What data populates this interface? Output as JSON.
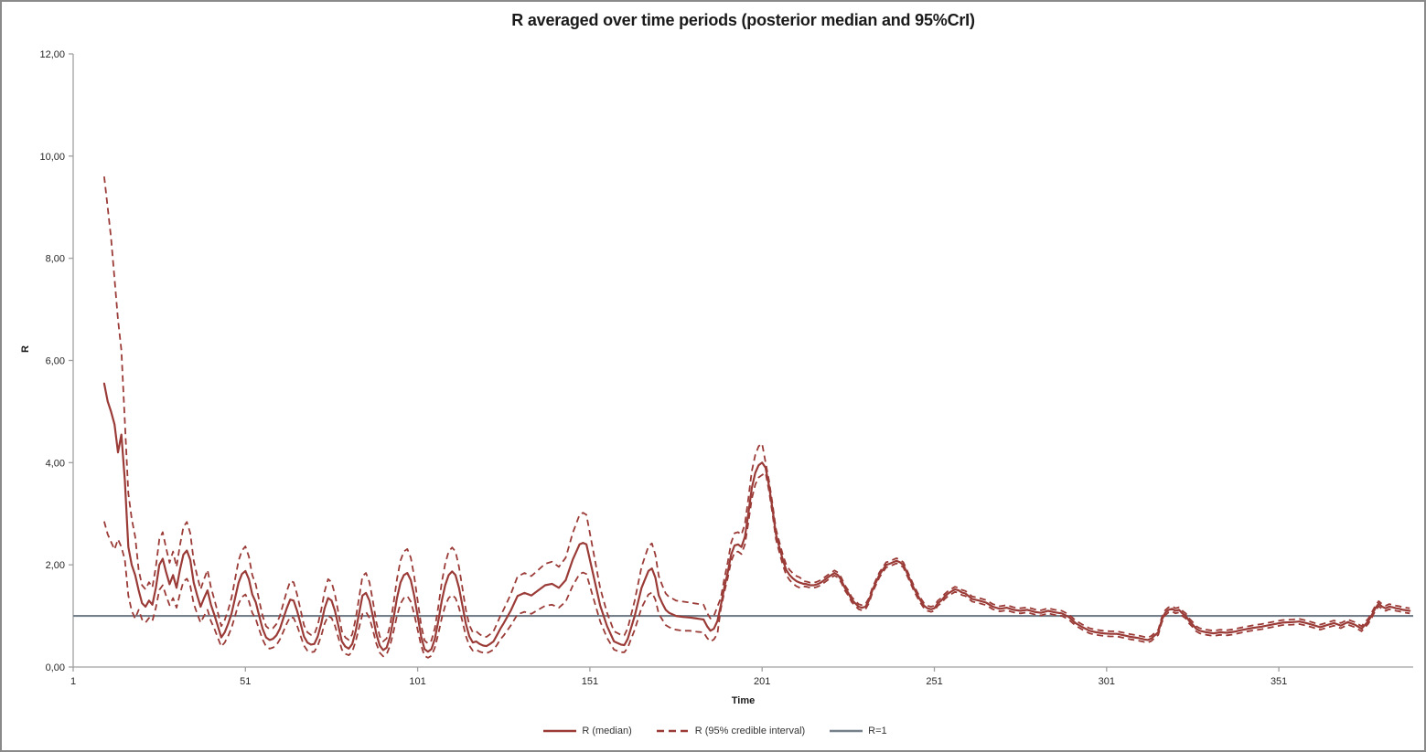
{
  "title": "R averaged over time periods (posterior median and 95%CrI)",
  "colors": {
    "series_red": "#9a3b37",
    "r1_line_gray": "#75808a",
    "axis_line": "#a0a0a0",
    "tick_label": "#262626",
    "frame_border": "#8a8a8a"
  },
  "legend": {
    "items": [
      {
        "label": "R (median)",
        "swatch": "solid-red-line"
      },
      {
        "label": "R (95% credible interval)",
        "swatch": "dashed-red-line"
      },
      {
        "label": "R=1",
        "swatch": "solid-gray-line"
      }
    ]
  },
  "chart_data": {
    "type": "line",
    "title": "R averaged over time periods (posterior median and 95%CrI)",
    "xlabel": "Time",
    "ylabel": "R",
    "xlim": [
      1,
      390
    ],
    "ylim": [
      0,
      12
    ],
    "grid": false,
    "legend_position": "bottom",
    "x_axis": {
      "values": [
        1,
        51,
        101,
        151,
        201,
        251,
        301,
        351
      ],
      "labels": [
        "1",
        "51",
        "101",
        "151",
        "201",
        "251",
        "301",
        "351"
      ]
    },
    "y_axis": {
      "values": [
        0,
        2,
        4,
        6,
        8,
        10,
        12
      ],
      "labels": [
        "0,00",
        "2,00",
        "4,00",
        "6,00",
        "8,00",
        "10,00",
        "12,00"
      ]
    },
    "x": [
      10,
      11,
      12,
      13,
      14,
      15,
      16,
      17,
      18,
      19,
      20,
      21,
      22,
      23,
      24,
      25,
      26,
      27,
      28,
      29,
      30,
      31,
      32,
      33,
      34,
      35,
      36,
      37,
      38,
      39,
      40,
      41,
      42,
      43,
      44,
      45,
      46,
      47,
      48,
      49,
      50,
      51,
      52,
      53,
      54,
      55,
      56,
      57,
      58,
      59,
      60,
      61,
      62,
      63,
      64,
      65,
      66,
      67,
      68,
      69,
      70,
      71,
      72,
      73,
      74,
      75,
      76,
      77,
      78,
      79,
      80,
      81,
      82,
      83,
      84,
      85,
      86,
      87,
      88,
      89,
      90,
      91,
      92,
      93,
      94,
      95,
      96,
      97,
      98,
      99,
      100,
      101,
      102,
      103,
      104,
      105,
      106,
      107,
      108,
      109,
      110,
      111,
      112,
      113,
      114,
      115,
      116,
      117,
      118,
      119,
      120,
      121,
      122,
      123,
      124,
      125,
      126,
      128,
      130,
      132,
      134,
      136,
      138,
      140,
      142,
      144,
      146,
      148,
      149,
      150,
      152,
      154,
      156,
      158,
      160,
      161,
      162,
      164,
      166,
      168,
      169,
      170,
      171,
      172,
      173,
      174,
      175,
      176,
      178,
      180,
      182,
      184,
      185,
      186,
      187,
      188,
      189,
      190,
      191,
      192,
      193,
      194,
      195,
      196,
      197,
      198,
      199,
      200,
      201,
      202,
      203,
      204,
      205,
      206,
      207,
      208,
      209,
      210,
      211,
      212,
      213,
      214,
      215,
      216,
      217,
      218,
      220,
      222,
      223,
      224,
      225,
      226,
      227,
      228,
      229,
      230,
      231,
      232,
      233,
      234,
      235,
      236,
      237,
      238,
      239,
      240,
      241,
      242,
      243,
      244,
      245,
      246,
      247,
      248,
      249,
      250,
      251,
      252,
      253,
      254,
      255,
      256,
      257,
      258,
      259,
      260,
      262,
      264,
      266,
      268,
      270,
      272,
      274,
      276,
      278,
      280,
      282,
      284,
      286,
      288,
      290,
      292,
      294,
      296,
      298,
      300,
      302,
      304,
      306,
      308,
      310,
      312,
      313,
      314,
      315,
      316,
      317,
      318,
      319,
      320,
      321,
      322,
      323,
      324,
      325,
      326,
      327,
      328,
      330,
      332,
      334,
      336,
      338,
      340,
      343,
      346,
      349,
      352,
      355,
      357,
      359,
      361,
      363,
      365,
      367,
      369,
      371,
      373,
      375,
      377,
      378,
      379,
      380,
      381,
      382,
      383,
      384,
      385,
      386,
      387,
      388,
      389
    ],
    "series": [
      {
        "name": "R (median)",
        "style": "solid",
        "color": "#9a3b37",
        "y": [
          5.55,
          5.2,
          5.0,
          4.75,
          4.2,
          4.55,
          3.65,
          2.35,
          2.0,
          1.8,
          1.5,
          1.25,
          1.18,
          1.3,
          1.22,
          1.55,
          2.0,
          2.12,
          1.85,
          1.62,
          1.8,
          1.55,
          1.9,
          2.2,
          2.28,
          2.1,
          1.65,
          1.4,
          1.18,
          1.35,
          1.5,
          1.22,
          1.02,
          0.8,
          0.58,
          0.68,
          0.85,
          1.05,
          1.35,
          1.65,
          1.82,
          1.88,
          1.72,
          1.42,
          1.27,
          1.0,
          0.75,
          0.58,
          0.53,
          0.55,
          0.62,
          0.75,
          0.95,
          1.15,
          1.32,
          1.3,
          1.1,
          0.85,
          0.6,
          0.48,
          0.44,
          0.45,
          0.6,
          0.85,
          1.15,
          1.35,
          1.3,
          1.1,
          0.8,
          0.5,
          0.4,
          0.36,
          0.45,
          0.7,
          1.05,
          1.4,
          1.45,
          1.3,
          1.0,
          0.65,
          0.42,
          0.33,
          0.38,
          0.6,
          0.95,
          1.35,
          1.65,
          1.8,
          1.84,
          1.7,
          1.4,
          1.0,
          0.6,
          0.35,
          0.3,
          0.35,
          0.55,
          0.9,
          1.3,
          1.6,
          1.8,
          1.87,
          1.8,
          1.55,
          1.2,
          0.85,
          0.6,
          0.48,
          0.5,
          0.45,
          0.42,
          0.41,
          0.45,
          0.5,
          0.62,
          0.75,
          0.86,
          1.1,
          1.39,
          1.45,
          1.4,
          1.5,
          1.6,
          1.63,
          1.55,
          1.7,
          2.1,
          2.4,
          2.43,
          2.4,
          1.8,
          1.2,
          0.8,
          0.5,
          0.44,
          0.43,
          0.55,
          1.0,
          1.55,
          1.88,
          1.93,
          1.75,
          1.4,
          1.25,
          1.12,
          1.06,
          1.03,
          1.0,
          0.98,
          0.97,
          0.95,
          0.93,
          0.8,
          0.71,
          0.75,
          0.9,
          1.2,
          1.55,
          1.85,
          2.2,
          2.38,
          2.4,
          2.35,
          2.55,
          3.0,
          3.5,
          3.8,
          3.95,
          4.0,
          3.9,
          3.55,
          3.1,
          2.6,
          2.35,
          2.1,
          1.9,
          1.8,
          1.73,
          1.68,
          1.65,
          1.63,
          1.62,
          1.6,
          1.6,
          1.62,
          1.65,
          1.75,
          1.84,
          1.8,
          1.7,
          1.55,
          1.45,
          1.32,
          1.25,
          1.18,
          1.16,
          1.18,
          1.3,
          1.5,
          1.65,
          1.8,
          1.9,
          2.0,
          2.02,
          2.05,
          2.08,
          2.05,
          2.0,
          1.85,
          1.7,
          1.55,
          1.42,
          1.3,
          1.2,
          1.15,
          1.13,
          1.15,
          1.25,
          1.3,
          1.38,
          1.44,
          1.48,
          1.52,
          1.5,
          1.46,
          1.44,
          1.33,
          1.3,
          1.26,
          1.18,
          1.14,
          1.16,
          1.12,
          1.1,
          1.12,
          1.08,
          1.06,
          1.1,
          1.07,
          1.05,
          0.98,
          0.86,
          0.78,
          0.71,
          0.68,
          0.66,
          0.65,
          0.65,
          0.62,
          0.59,
          0.57,
          0.54,
          0.53,
          0.56,
          0.62,
          0.68,
          0.92,
          1.06,
          1.12,
          1.14,
          1.1,
          1.12,
          1.05,
          1.0,
          0.9,
          0.83,
          0.75,
          0.71,
          0.68,
          0.66,
          0.68,
          0.67,
          0.69,
          0.72,
          0.76,
          0.79,
          0.83,
          0.87,
          0.88,
          0.89,
          0.86,
          0.82,
          0.78,
          0.82,
          0.86,
          0.81,
          0.88,
          0.83,
          0.75,
          0.9,
          1.02,
          1.15,
          1.24,
          1.18,
          1.15,
          1.18,
          1.17,
          1.15,
          1.14,
          1.12,
          1.11,
          1.1
        ]
      },
      {
        "name": "R (95% credible interval) upper",
        "style": "dashed",
        "color": "#9a3b37",
        "y": [
          9.6,
          9.0,
          8.4,
          7.6,
          6.8,
          6.2,
          4.8,
          3.4,
          2.9,
          2.55,
          1.9,
          1.6,
          1.52,
          1.66,
          1.56,
          1.96,
          2.5,
          2.64,
          2.32,
          2.04,
          2.26,
          1.96,
          2.38,
          2.74,
          2.84,
          2.62,
          2.08,
          1.78,
          1.52,
          1.72,
          1.9,
          1.56,
          1.32,
          1.06,
          0.8,
          0.92,
          1.12,
          1.36,
          1.72,
          2.08,
          2.28,
          2.36,
          2.16,
          1.8,
          1.62,
          1.3,
          1.0,
          0.8,
          0.74,
          0.76,
          0.84,
          1.0,
          1.24,
          1.48,
          1.68,
          1.66,
          1.42,
          1.12,
          0.82,
          0.68,
          0.63,
          0.64,
          0.82,
          1.12,
          1.48,
          1.72,
          1.66,
          1.42,
          1.06,
          0.7,
          0.58,
          0.53,
          0.64,
          0.94,
          1.36,
          1.78,
          1.84,
          1.66,
          1.3,
          0.88,
          0.6,
          0.5,
          0.56,
          0.82,
          1.24,
          1.72,
          2.08,
          2.26,
          2.31,
          2.14,
          1.78,
          1.3,
          0.82,
          0.52,
          0.46,
          0.52,
          0.76,
          1.18,
          1.66,
          2.02,
          2.26,
          2.34,
          2.26,
          1.96,
          1.54,
          1.12,
          0.82,
          0.68,
          0.7,
          0.64,
          0.6,
          0.59,
          0.64,
          0.7,
          0.84,
          1.0,
          1.13,
          1.42,
          1.77,
          1.84,
          1.78,
          1.9,
          2.02,
          2.06,
          1.96,
          2.14,
          2.62,
          2.98,
          3.02,
          2.98,
          2.26,
          1.54,
          1.06,
          0.7,
          0.63,
          0.62,
          0.76,
          1.3,
          1.96,
          2.36,
          2.42,
          2.2,
          1.78,
          1.6,
          1.44,
          1.37,
          1.34,
          1.3,
          1.28,
          1.26,
          1.24,
          1.22,
          1.06,
          0.95,
          1.0,
          1.18,
          1.35,
          1.72,
          2.05,
          2.43,
          2.62,
          2.64,
          2.59,
          2.8,
          3.29,
          3.83,
          4.15,
          4.32,
          4.37,
          4.0,
          3.65,
          3.2,
          2.7,
          2.45,
          2.2,
          2.0,
          1.9,
          1.83,
          1.78,
          1.75,
          1.68,
          1.67,
          1.65,
          1.65,
          1.67,
          1.7,
          1.8,
          1.89,
          1.85,
          1.75,
          1.6,
          1.5,
          1.37,
          1.3,
          1.23,
          1.21,
          1.23,
          1.35,
          1.55,
          1.7,
          1.85,
          1.95,
          2.05,
          2.07,
          2.1,
          2.13,
          2.1,
          2.05,
          1.9,
          1.75,
          1.6,
          1.47,
          1.35,
          1.25,
          1.2,
          1.18,
          1.2,
          1.3,
          1.35,
          1.43,
          1.49,
          1.53,
          1.57,
          1.55,
          1.51,
          1.49,
          1.38,
          1.35,
          1.31,
          1.23,
          1.19,
          1.21,
          1.17,
          1.15,
          1.17,
          1.13,
          1.11,
          1.15,
          1.12,
          1.1,
          1.03,
          0.91,
          0.83,
          0.76,
          0.73,
          0.71,
          0.7,
          0.7,
          0.67,
          0.64,
          0.62,
          0.59,
          0.58,
          0.61,
          0.67,
          0.73,
          0.97,
          1.11,
          1.17,
          1.19,
          1.15,
          1.17,
          1.1,
          1.05,
          0.95,
          0.88,
          0.8,
          0.76,
          0.73,
          0.71,
          0.73,
          0.72,
          0.74,
          0.77,
          0.81,
          0.84,
          0.88,
          0.92,
          0.93,
          0.94,
          0.91,
          0.87,
          0.83,
          0.87,
          0.91,
          0.86,
          0.93,
          0.88,
          0.8,
          0.95,
          1.07,
          1.2,
          1.29,
          1.23,
          1.2,
          1.23,
          1.22,
          1.2,
          1.19,
          1.17,
          1.16,
          1.15
        ]
      },
      {
        "name": "R (95% credible interval) lower",
        "style": "dashed",
        "color": "#9a3b37",
        "y": [
          2.85,
          2.6,
          2.45,
          2.3,
          2.5,
          2.35,
          2.1,
          1.4,
          1.1,
          0.95,
          1.12,
          0.93,
          0.87,
          0.96,
          0.9,
          1.16,
          1.51,
          1.6,
          1.39,
          1.21,
          1.35,
          1.16,
          1.43,
          1.67,
          1.73,
          1.59,
          1.24,
          1.04,
          0.87,
          1.0,
          1.12,
          0.9,
          0.75,
          0.57,
          0.4,
          0.48,
          0.61,
          0.77,
          1.0,
          1.24,
          1.37,
          1.42,
          1.29,
          1.06,
          0.94,
          0.73,
          0.54,
          0.4,
          0.36,
          0.38,
          0.43,
          0.54,
          0.69,
          0.85,
          0.98,
          0.96,
          0.81,
          0.61,
          0.42,
          0.32,
          0.29,
          0.3,
          0.42,
          0.61,
          0.85,
          1.0,
          0.96,
          0.81,
          0.57,
          0.34,
          0.26,
          0.23,
          0.3,
          0.5,
          0.77,
          1.04,
          1.08,
          0.96,
          0.73,
          0.46,
          0.28,
          0.21,
          0.25,
          0.42,
          0.69,
          1.0,
          1.24,
          1.35,
          1.39,
          1.28,
          1.04,
          0.73,
          0.42,
          0.22,
          0.18,
          0.22,
          0.38,
          0.65,
          0.96,
          1.2,
          1.35,
          1.41,
          1.35,
          1.16,
          0.89,
          0.61,
          0.42,
          0.32,
          0.34,
          0.3,
          0.28,
          0.27,
          0.3,
          0.34,
          0.43,
          0.54,
          0.62,
          0.81,
          1.03,
          1.08,
          1.04,
          1.12,
          1.2,
          1.22,
          1.16,
          1.28,
          1.59,
          1.82,
          1.85,
          1.82,
          1.35,
          0.89,
          0.57,
          0.34,
          0.29,
          0.29,
          0.38,
          0.73,
          1.16,
          1.42,
          1.46,
          1.32,
          1.04,
          0.93,
          0.82,
          0.78,
          0.75,
          0.73,
          0.71,
          0.71,
          0.69,
          0.68,
          0.57,
          0.5,
          0.54,
          0.65,
          1.13,
          1.46,
          1.74,
          2.07,
          2.24,
          2.26,
          2.21,
          2.4,
          2.82,
          3.29,
          3.57,
          3.71,
          3.76,
          3.8,
          3.45,
          3.0,
          2.5,
          2.25,
          2.0,
          1.8,
          1.7,
          1.63,
          1.58,
          1.55,
          1.58,
          1.57,
          1.55,
          1.55,
          1.57,
          1.6,
          1.7,
          1.79,
          1.75,
          1.65,
          1.5,
          1.4,
          1.27,
          1.2,
          1.13,
          1.11,
          1.13,
          1.25,
          1.45,
          1.6,
          1.75,
          1.85,
          1.95,
          1.97,
          2.0,
          2.03,
          2.0,
          1.95,
          1.8,
          1.65,
          1.5,
          1.37,
          1.25,
          1.15,
          1.1,
          1.08,
          1.1,
          1.2,
          1.25,
          1.33,
          1.39,
          1.43,
          1.47,
          1.45,
          1.41,
          1.39,
          1.28,
          1.25,
          1.21,
          1.13,
          1.09,
          1.11,
          1.07,
          1.05,
          1.07,
          1.03,
          1.01,
          1.05,
          1.02,
          1.0,
          0.93,
          0.81,
          0.73,
          0.66,
          0.63,
          0.61,
          0.6,
          0.6,
          0.57,
          0.54,
          0.52,
          0.49,
          0.48,
          0.51,
          0.57,
          0.63,
          0.87,
          1.01,
          1.07,
          1.09,
          1.05,
          1.07,
          1.0,
          0.95,
          0.85,
          0.78,
          0.7,
          0.66,
          0.63,
          0.61,
          0.63,
          0.62,
          0.64,
          0.67,
          0.71,
          0.74,
          0.78,
          0.82,
          0.83,
          0.84,
          0.81,
          0.77,
          0.73,
          0.77,
          0.81,
          0.76,
          0.83,
          0.78,
          0.7,
          0.85,
          0.97,
          1.1,
          1.19,
          1.13,
          1.1,
          1.13,
          1.12,
          1.1,
          1.09,
          1.07,
          1.06,
          1.05
        ]
      },
      {
        "name": "R=1",
        "style": "solid",
        "color": "#75808a",
        "constant": 1
      }
    ]
  }
}
